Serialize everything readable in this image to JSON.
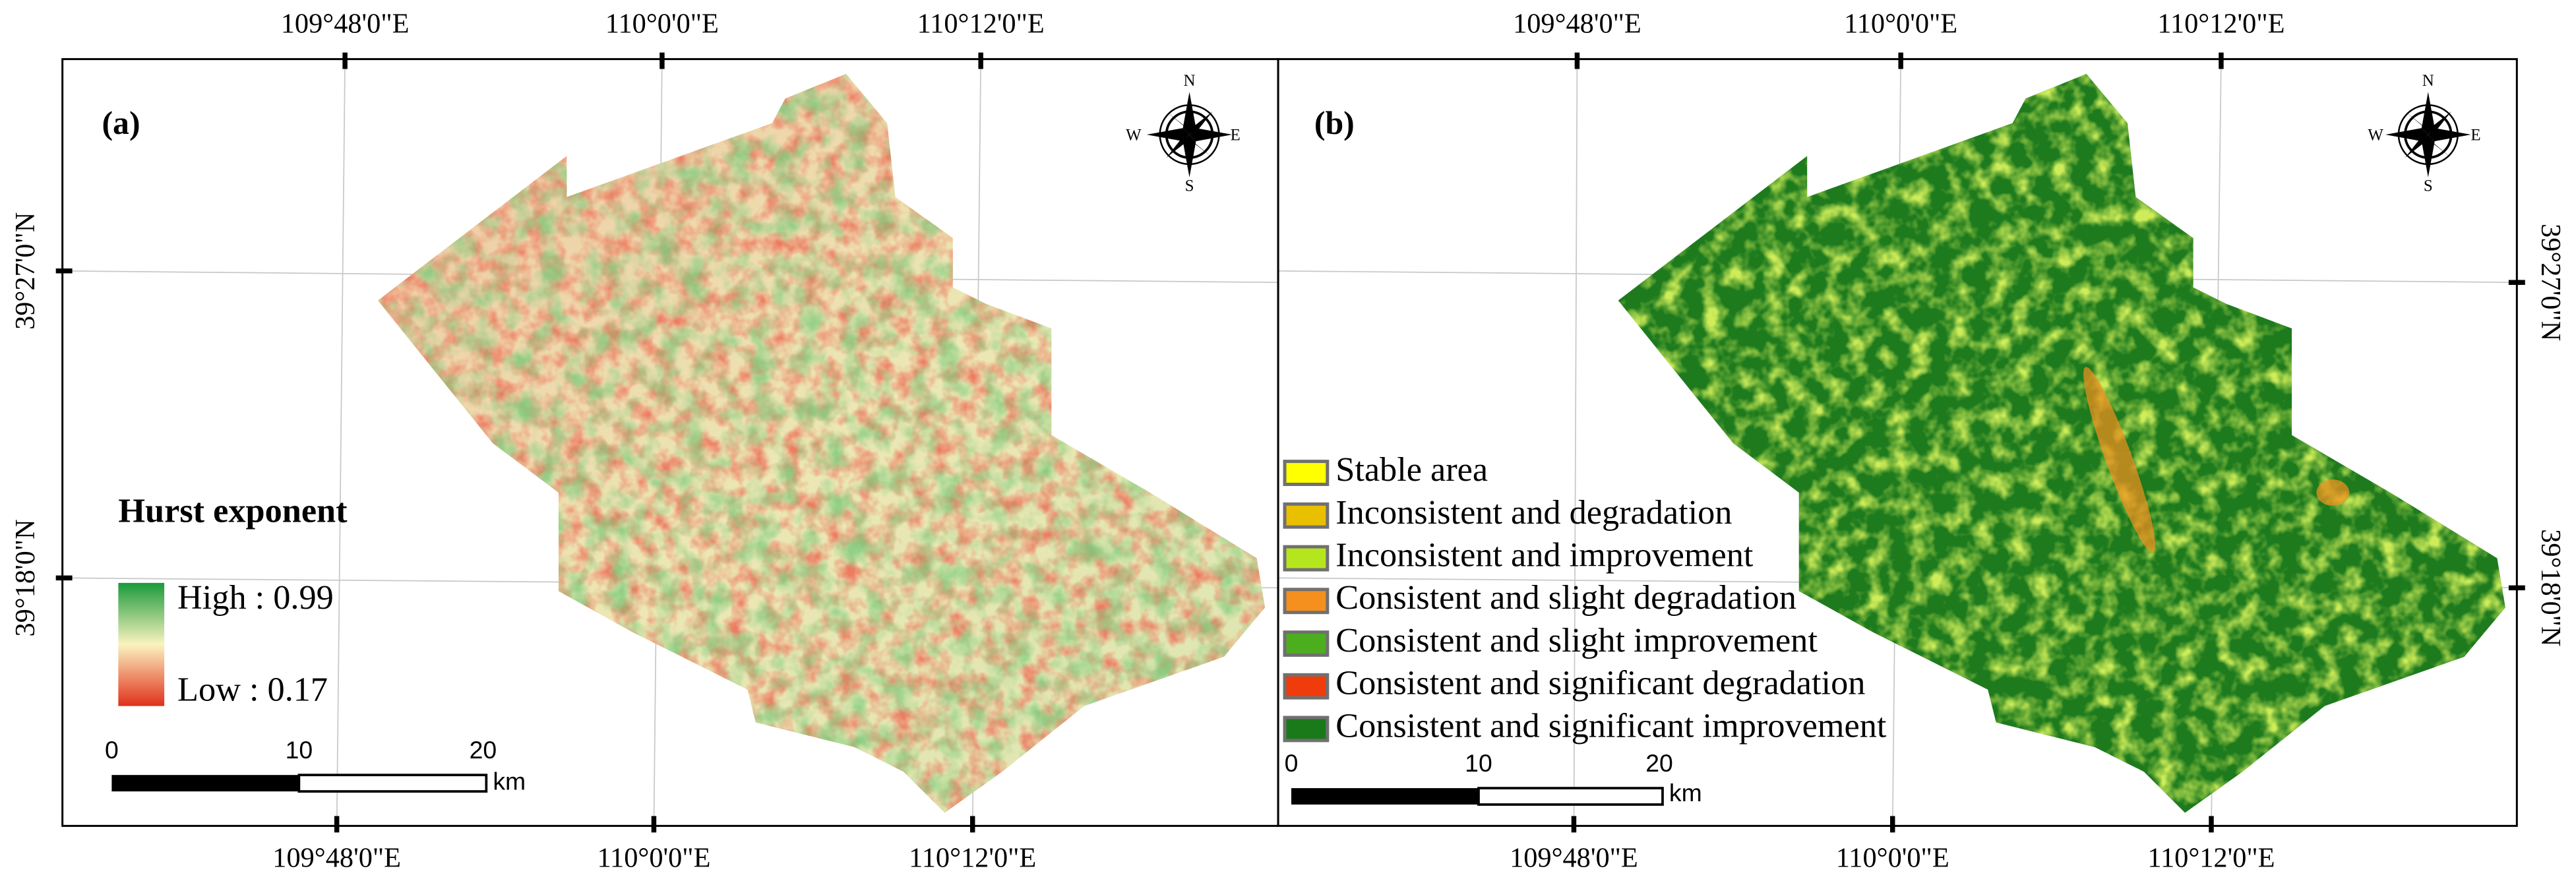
{
  "panels": [
    {
      "label": "(a)",
      "top_labels": [
        "109°48'0\"E",
        "110°0'0\"E",
        "110°12'0\"E"
      ],
      "bottom_labels": [
        "109°48'0\"E",
        "110°0'0\"E",
        "110°12'0\"E"
      ],
      "side_labels": [
        "39°27'0\"N",
        "39°18'0\"N"
      ],
      "compass": {
        "n": "N",
        "e": "E",
        "s": "S",
        "w": "W"
      },
      "legend": {
        "title": "Hurst exponent",
        "high": "High : 0.99",
        "low": "Low : 0.17"
      },
      "scale_bar": {
        "ticks": [
          "0",
          "10",
          "20"
        ],
        "unit": "km"
      }
    },
    {
      "label": "(b)",
      "top_labels": [
        "109°48'0\"E",
        "110°0'0\"E",
        "110°12'0\"E"
      ],
      "bottom_labels": [
        "109°48'0\"E",
        "110°0'0\"E",
        "110°12'0\"E"
      ],
      "side_labels": [
        "39°27'0\"N",
        "39°18'0\"N"
      ],
      "compass": {
        "n": "N",
        "e": "E",
        "s": "S",
        "w": "W"
      },
      "legend": {
        "items": [
          "Stable area",
          "Inconsistent and degradation",
          "Inconsistent and improvement",
          "Consistent and slight degradation",
          "Consistent and slight improvement",
          "Consistent and significant degradation",
          "Consistent and significant improvement"
        ]
      },
      "scale_bar": {
        "ticks": [
          "0",
          "10",
          "20"
        ],
        "unit": "km"
      }
    }
  ]
}
